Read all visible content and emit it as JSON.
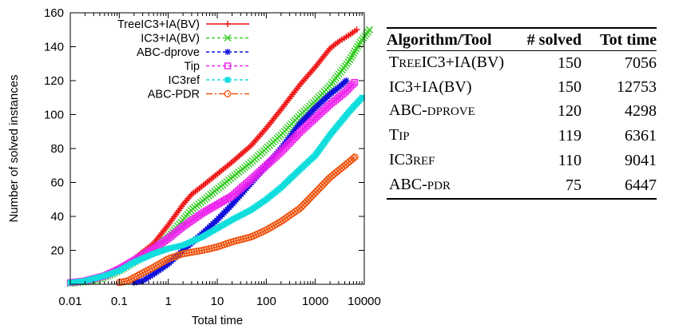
{
  "chart_data": {
    "type": "line",
    "xscale": "log",
    "xlim": [
      0.01,
      10000
    ],
    "ylim": [
      0,
      160
    ],
    "xlabel": "Total time",
    "ylabel": "Number of solved instances",
    "grid": false,
    "legend_position": "top-left",
    "x_ticks": [
      0.01,
      0.1,
      1,
      10,
      100,
      1000,
      10000
    ],
    "x_tick_labels": [
      "0.01",
      "0.1",
      "1",
      "10",
      "100",
      "1000",
      "10000"
    ],
    "y_ticks": [
      20,
      40,
      60,
      80,
      100,
      120,
      140,
      160
    ],
    "y_tick_labels": [
      "20",
      "40",
      "60",
      "80",
      "100",
      "120",
      "140",
      "160"
    ],
    "series": [
      {
        "name": "TreeIC3+IA(BV)",
        "color": "#ee1111",
        "marker": "plus",
        "points": [
          [
            0.01,
            1
          ],
          [
            0.02,
            2
          ],
          [
            0.05,
            5
          ],
          [
            0.1,
            9
          ],
          [
            0.2,
            15
          ],
          [
            0.5,
            24
          ],
          [
            1,
            35
          ],
          [
            2,
            47
          ],
          [
            3,
            53
          ],
          [
            5,
            58
          ],
          [
            10,
            65
          ],
          [
            20,
            72
          ],
          [
            50,
            82
          ],
          [
            100,
            92
          ],
          [
            200,
            103
          ],
          [
            500,
            118
          ],
          [
            1000,
            128
          ],
          [
            2000,
            139
          ],
          [
            3000,
            143
          ],
          [
            5000,
            147
          ],
          [
            7056,
            150
          ]
        ]
      },
      {
        "name": "IC3+IA(BV)",
        "color": "#33cc22",
        "marker": "cross",
        "points": [
          [
            0.01,
            0.5
          ],
          [
            0.03,
            2
          ],
          [
            0.06,
            5
          ],
          [
            0.1,
            8
          ],
          [
            0.2,
            13
          ],
          [
            0.5,
            20
          ],
          [
            1,
            28
          ],
          [
            2,
            38
          ],
          [
            3,
            44
          ],
          [
            5,
            49
          ],
          [
            10,
            56
          ],
          [
            20,
            63
          ],
          [
            50,
            72
          ],
          [
            100,
            80
          ],
          [
            200,
            88
          ],
          [
            500,
            100
          ],
          [
            1000,
            108
          ],
          [
            2000,
            117
          ],
          [
            5000,
            132
          ],
          [
            8000,
            142
          ],
          [
            12753,
            150
          ]
        ]
      },
      {
        "name": "ABC-dprove",
        "color": "#1111dd",
        "marker": "asterisk",
        "points": [
          [
            0.2,
            1
          ],
          [
            0.3,
            2
          ],
          [
            0.5,
            6
          ],
          [
            1,
            12
          ],
          [
            2,
            20
          ],
          [
            5,
            30
          ],
          [
            10,
            38
          ],
          [
            20,
            47
          ],
          [
            50,
            60
          ],
          [
            100,
            70
          ],
          [
            200,
            80
          ],
          [
            500,
            95
          ],
          [
            1000,
            104
          ],
          [
            2000,
            112
          ],
          [
            3000,
            116
          ],
          [
            4298,
            120
          ]
        ]
      },
      {
        "name": "Tip",
        "color": "#ee22ee",
        "marker": "square",
        "points": [
          [
            0.01,
            1
          ],
          [
            0.02,
            2
          ],
          [
            0.05,
            5
          ],
          [
            0.1,
            9
          ],
          [
            0.2,
            14
          ],
          [
            0.5,
            21
          ],
          [
            1,
            27
          ],
          [
            2,
            34
          ],
          [
            5,
            42
          ],
          [
            10,
            47
          ],
          [
            20,
            52
          ],
          [
            50,
            62
          ],
          [
            100,
            70
          ],
          [
            200,
            78
          ],
          [
            500,
            90
          ],
          [
            1000,
            98
          ],
          [
            2000,
            106
          ],
          [
            4000,
            113
          ],
          [
            6361,
            119
          ]
        ]
      },
      {
        "name": "IC3ref",
        "color": "#11dddd",
        "marker": "filled-square",
        "points": [
          [
            0.01,
            1
          ],
          [
            0.02,
            2
          ],
          [
            0.05,
            5
          ],
          [
            0.1,
            8
          ],
          [
            0.2,
            13
          ],
          [
            0.5,
            18
          ],
          [
            1,
            21
          ],
          [
            2,
            23
          ],
          [
            5,
            28
          ],
          [
            10,
            33
          ],
          [
            20,
            38
          ],
          [
            50,
            44
          ],
          [
            100,
            50
          ],
          [
            200,
            57
          ],
          [
            500,
            68
          ],
          [
            1000,
            76
          ],
          [
            2000,
            88
          ],
          [
            5000,
            102
          ],
          [
            9041,
            110
          ]
        ]
      },
      {
        "name": "ABC-PDR",
        "color": "#ee5511",
        "marker": "circle",
        "points": [
          [
            0.1,
            1
          ],
          [
            0.15,
            2
          ],
          [
            0.2,
            4
          ],
          [
            0.5,
            10
          ],
          [
            1,
            15
          ],
          [
            2,
            18
          ],
          [
            5,
            20
          ],
          [
            10,
            22
          ],
          [
            20,
            25
          ],
          [
            50,
            28
          ],
          [
            100,
            32
          ],
          [
            200,
            37
          ],
          [
            500,
            45
          ],
          [
            1000,
            54
          ],
          [
            2000,
            63
          ],
          [
            4000,
            70
          ],
          [
            6447,
            75
          ]
        ]
      }
    ]
  },
  "table": {
    "headers": [
      "Algorithm/Tool",
      "# solved",
      "Tot time"
    ],
    "rows": [
      {
        "name": "TreeIC3+IA(BV)",
        "solved": "150",
        "time": "7056"
      },
      {
        "name": "IC3+IA(BV)",
        "solved": "150",
        "time": "12753"
      },
      {
        "name": "ABC-dprove",
        "solved": "120",
        "time": "4298"
      },
      {
        "name": "Tip",
        "solved": "119",
        "time": "6361"
      },
      {
        "name": "IC3ref",
        "solved": "110",
        "time": "9041"
      },
      {
        "name": "ABC-pdr",
        "solved": "75",
        "time": "6447"
      }
    ]
  }
}
